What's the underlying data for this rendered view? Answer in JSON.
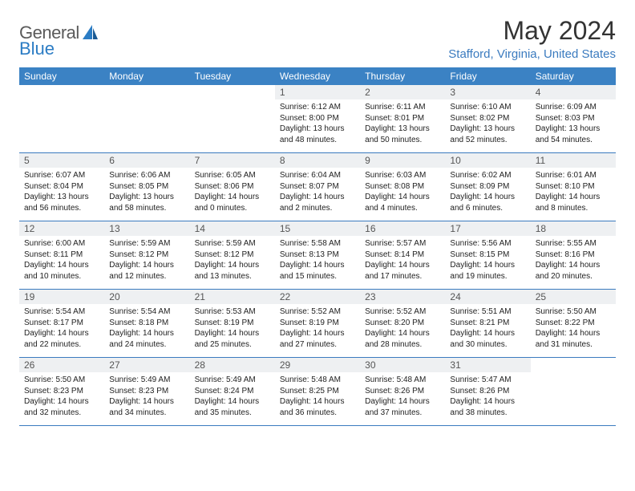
{
  "logo": {
    "general": "General",
    "blue": "Blue"
  },
  "title": "May 2024",
  "location": "Stafford, Virginia, United States",
  "weekdays": [
    "Sunday",
    "Monday",
    "Tuesday",
    "Wednesday",
    "Thursday",
    "Friday",
    "Saturday"
  ],
  "colors": {
    "header_bg": "#3b82c4",
    "accent": "#3b7bbf",
    "daynum_bg": "#eef0f2",
    "text": "#222222",
    "logo_gray": "#5a5a5a"
  },
  "weeks": [
    [
      {
        "n": "",
        "sr": "",
        "ss": "",
        "dl": ""
      },
      {
        "n": "",
        "sr": "",
        "ss": "",
        "dl": ""
      },
      {
        "n": "",
        "sr": "",
        "ss": "",
        "dl": ""
      },
      {
        "n": "1",
        "sr": "Sunrise: 6:12 AM",
        "ss": "Sunset: 8:00 PM",
        "dl": "Daylight: 13 hours and 48 minutes."
      },
      {
        "n": "2",
        "sr": "Sunrise: 6:11 AM",
        "ss": "Sunset: 8:01 PM",
        "dl": "Daylight: 13 hours and 50 minutes."
      },
      {
        "n": "3",
        "sr": "Sunrise: 6:10 AM",
        "ss": "Sunset: 8:02 PM",
        "dl": "Daylight: 13 hours and 52 minutes."
      },
      {
        "n": "4",
        "sr": "Sunrise: 6:09 AM",
        "ss": "Sunset: 8:03 PM",
        "dl": "Daylight: 13 hours and 54 minutes."
      }
    ],
    [
      {
        "n": "5",
        "sr": "Sunrise: 6:07 AM",
        "ss": "Sunset: 8:04 PM",
        "dl": "Daylight: 13 hours and 56 minutes."
      },
      {
        "n": "6",
        "sr": "Sunrise: 6:06 AM",
        "ss": "Sunset: 8:05 PM",
        "dl": "Daylight: 13 hours and 58 minutes."
      },
      {
        "n": "7",
        "sr": "Sunrise: 6:05 AM",
        "ss": "Sunset: 8:06 PM",
        "dl": "Daylight: 14 hours and 0 minutes."
      },
      {
        "n": "8",
        "sr": "Sunrise: 6:04 AM",
        "ss": "Sunset: 8:07 PM",
        "dl": "Daylight: 14 hours and 2 minutes."
      },
      {
        "n": "9",
        "sr": "Sunrise: 6:03 AM",
        "ss": "Sunset: 8:08 PM",
        "dl": "Daylight: 14 hours and 4 minutes."
      },
      {
        "n": "10",
        "sr": "Sunrise: 6:02 AM",
        "ss": "Sunset: 8:09 PM",
        "dl": "Daylight: 14 hours and 6 minutes."
      },
      {
        "n": "11",
        "sr": "Sunrise: 6:01 AM",
        "ss": "Sunset: 8:10 PM",
        "dl": "Daylight: 14 hours and 8 minutes."
      }
    ],
    [
      {
        "n": "12",
        "sr": "Sunrise: 6:00 AM",
        "ss": "Sunset: 8:11 PM",
        "dl": "Daylight: 14 hours and 10 minutes."
      },
      {
        "n": "13",
        "sr": "Sunrise: 5:59 AM",
        "ss": "Sunset: 8:12 PM",
        "dl": "Daylight: 14 hours and 12 minutes."
      },
      {
        "n": "14",
        "sr": "Sunrise: 5:59 AM",
        "ss": "Sunset: 8:12 PM",
        "dl": "Daylight: 14 hours and 13 minutes."
      },
      {
        "n": "15",
        "sr": "Sunrise: 5:58 AM",
        "ss": "Sunset: 8:13 PM",
        "dl": "Daylight: 14 hours and 15 minutes."
      },
      {
        "n": "16",
        "sr": "Sunrise: 5:57 AM",
        "ss": "Sunset: 8:14 PM",
        "dl": "Daylight: 14 hours and 17 minutes."
      },
      {
        "n": "17",
        "sr": "Sunrise: 5:56 AM",
        "ss": "Sunset: 8:15 PM",
        "dl": "Daylight: 14 hours and 19 minutes."
      },
      {
        "n": "18",
        "sr": "Sunrise: 5:55 AM",
        "ss": "Sunset: 8:16 PM",
        "dl": "Daylight: 14 hours and 20 minutes."
      }
    ],
    [
      {
        "n": "19",
        "sr": "Sunrise: 5:54 AM",
        "ss": "Sunset: 8:17 PM",
        "dl": "Daylight: 14 hours and 22 minutes."
      },
      {
        "n": "20",
        "sr": "Sunrise: 5:54 AM",
        "ss": "Sunset: 8:18 PM",
        "dl": "Daylight: 14 hours and 24 minutes."
      },
      {
        "n": "21",
        "sr": "Sunrise: 5:53 AM",
        "ss": "Sunset: 8:19 PM",
        "dl": "Daylight: 14 hours and 25 minutes."
      },
      {
        "n": "22",
        "sr": "Sunrise: 5:52 AM",
        "ss": "Sunset: 8:19 PM",
        "dl": "Daylight: 14 hours and 27 minutes."
      },
      {
        "n": "23",
        "sr": "Sunrise: 5:52 AM",
        "ss": "Sunset: 8:20 PM",
        "dl": "Daylight: 14 hours and 28 minutes."
      },
      {
        "n": "24",
        "sr": "Sunrise: 5:51 AM",
        "ss": "Sunset: 8:21 PM",
        "dl": "Daylight: 14 hours and 30 minutes."
      },
      {
        "n": "25",
        "sr": "Sunrise: 5:50 AM",
        "ss": "Sunset: 8:22 PM",
        "dl": "Daylight: 14 hours and 31 minutes."
      }
    ],
    [
      {
        "n": "26",
        "sr": "Sunrise: 5:50 AM",
        "ss": "Sunset: 8:23 PM",
        "dl": "Daylight: 14 hours and 32 minutes."
      },
      {
        "n": "27",
        "sr": "Sunrise: 5:49 AM",
        "ss": "Sunset: 8:23 PM",
        "dl": "Daylight: 14 hours and 34 minutes."
      },
      {
        "n": "28",
        "sr": "Sunrise: 5:49 AM",
        "ss": "Sunset: 8:24 PM",
        "dl": "Daylight: 14 hours and 35 minutes."
      },
      {
        "n": "29",
        "sr": "Sunrise: 5:48 AM",
        "ss": "Sunset: 8:25 PM",
        "dl": "Daylight: 14 hours and 36 minutes."
      },
      {
        "n": "30",
        "sr": "Sunrise: 5:48 AM",
        "ss": "Sunset: 8:26 PM",
        "dl": "Daylight: 14 hours and 37 minutes."
      },
      {
        "n": "31",
        "sr": "Sunrise: 5:47 AM",
        "ss": "Sunset: 8:26 PM",
        "dl": "Daylight: 14 hours and 38 minutes."
      },
      {
        "n": "",
        "sr": "",
        "ss": "",
        "dl": ""
      }
    ]
  ]
}
